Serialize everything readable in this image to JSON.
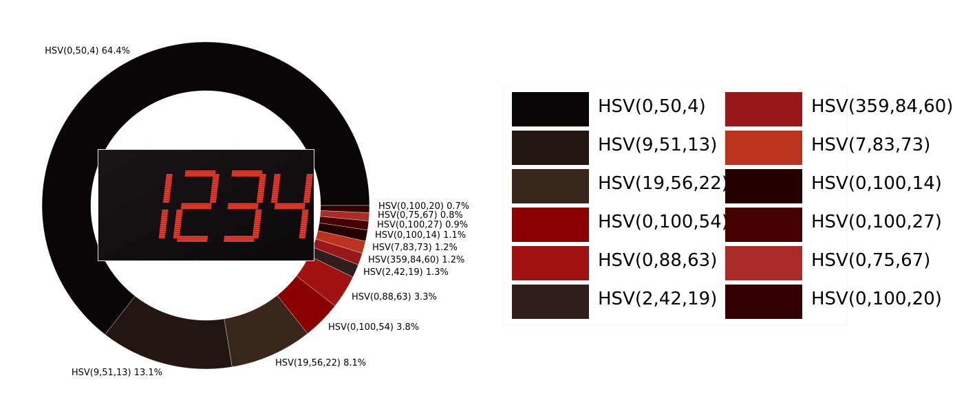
{
  "chart_data": {
    "type": "donut",
    "title": "",
    "legend_placement": "right",
    "slices": [
      {
        "label": "HSV(0,50,4)",
        "percent": 64.4,
        "color": "#0a0606"
      },
      {
        "label": "HSV(9,51,13)",
        "percent": 13.1,
        "color": "#221512"
      },
      {
        "label": "HSV(19,56,22)",
        "percent": 8.1,
        "color": "#38251b"
      },
      {
        "label": "HSV(0,100,54)",
        "percent": 3.8,
        "color": "#8a0000"
      },
      {
        "label": "HSV(0,88,63)",
        "percent": 3.3,
        "color": "#a11313"
      },
      {
        "label": "HSV(2,42,19)",
        "percent": 1.3,
        "color": "#301e1d"
      },
      {
        "label": "HSV(359,84,60)",
        "percent": 1.2,
        "color": "#991819"
      },
      {
        "label": "HSV(7,83,73)",
        "percent": 1.2,
        "color": "#ba331f"
      },
      {
        "label": "HSV(0,100,14)",
        "percent": 1.1,
        "color": "#240000"
      },
      {
        "label": "HSV(0,100,27)",
        "percent": 0.9,
        "color": "#450000"
      },
      {
        "label": "HSV(0,75,67)",
        "percent": 0.8,
        "color": "#ab2b2b"
      },
      {
        "label": "HSV(0,100,20)",
        "percent": 0.7,
        "color": "#330000"
      }
    ],
    "slice_labels": [
      "HSV(0,50,4) 64.4%",
      "HSV(9,51,13) 13.1%",
      "HSV(19,56,22) 8.1%",
      "HSV(0,100,54) 3.8%",
      "HSV(0,88,63) 3.3%",
      "HSV(2,42,19) 1.3%",
      "HSV(359,84,60) 1.2%",
      "HSV(7,83,73) 1.2%",
      "HSV(0,100,14) 1.1%",
      "HSV(0,100,27) 0.9%",
      "HSV(0,75,67) 0.8%",
      "HSV(0,100,20) 0.7%"
    ],
    "center_image": {
      "digits": "1234",
      "digit_color": "#c8281e",
      "background": "#100c0e"
    }
  },
  "legend": [
    {
      "label": "HSV(0,50,4)",
      "color": "#0a0606"
    },
    {
      "label": "HSV(9,51,13)",
      "color": "#221512"
    },
    {
      "label": "HSV(19,56,22)",
      "color": "#38251b"
    },
    {
      "label": "HSV(0,100,54)",
      "color": "#8a0000"
    },
    {
      "label": "HSV(0,88,63)",
      "color": "#a11313"
    },
    {
      "label": "HSV(2,42,19)",
      "color": "#301e1d"
    },
    {
      "label": "HSV(359,84,60)",
      "color": "#991819"
    },
    {
      "label": "HSV(7,83,73)",
      "color": "#ba331f"
    },
    {
      "label": "HSV(0,100,14)",
      "color": "#240000"
    },
    {
      "label": "HSV(0,100,27)",
      "color": "#450000"
    },
    {
      "label": "HSV(0,75,67)",
      "color": "#ab2b2b"
    },
    {
      "label": "HSV(0,100,20)",
      "color": "#330000"
    }
  ]
}
